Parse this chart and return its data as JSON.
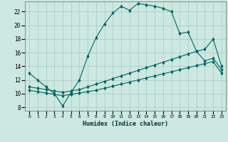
{
  "xlabel": "Humidex (Indice chaleur)",
  "bg_color": "#cce8e0",
  "grid_color": "#aad0c8",
  "line_color": "#006666",
  "xlim": [
    -0.5,
    23.5
  ],
  "ylim": [
    7.5,
    23.5
  ],
  "yticks": [
    8,
    10,
    12,
    14,
    16,
    18,
    20,
    22
  ],
  "xticks": [
    0,
    1,
    2,
    3,
    4,
    5,
    6,
    7,
    8,
    9,
    10,
    11,
    12,
    13,
    14,
    15,
    16,
    17,
    18,
    19,
    20,
    21,
    22,
    23
  ],
  "series1_x": [
    0,
    1,
    2,
    3,
    4,
    5,
    6,
    7,
    8,
    9,
    10,
    11,
    12,
    13,
    14,
    15,
    16,
    17,
    18,
    19,
    20,
    21,
    22,
    23
  ],
  "series1_y": [
    13.0,
    12.0,
    11.0,
    10.0,
    8.2,
    10.2,
    12.0,
    15.5,
    18.2,
    20.2,
    21.8,
    22.8,
    22.2,
    23.2,
    23.0,
    22.8,
    22.5,
    22.0,
    18.8,
    19.0,
    16.2,
    14.8,
    15.2,
    13.5
  ],
  "series2_x": [
    0,
    1,
    2,
    3,
    4,
    5,
    6,
    7,
    8,
    9,
    10,
    11,
    12,
    13,
    14,
    15,
    16,
    17,
    18,
    19,
    20,
    21,
    22,
    23
  ],
  "series2_y": [
    11.0,
    10.8,
    10.6,
    10.4,
    10.2,
    10.4,
    10.6,
    11.0,
    11.4,
    11.8,
    12.2,
    12.6,
    13.0,
    13.4,
    13.8,
    14.2,
    14.6,
    15.0,
    15.4,
    15.8,
    16.2,
    16.5,
    18.0,
    14.0
  ],
  "series3_x": [
    0,
    1,
    2,
    3,
    4,
    5,
    6,
    7,
    8,
    9,
    10,
    11,
    12,
    13,
    14,
    15,
    16,
    17,
    18,
    19,
    20,
    21,
    22,
    23
  ],
  "series3_y": [
    10.5,
    10.3,
    10.1,
    9.9,
    9.7,
    9.9,
    10.1,
    10.3,
    10.5,
    10.8,
    11.1,
    11.4,
    11.7,
    12.0,
    12.3,
    12.6,
    12.9,
    13.2,
    13.5,
    13.8,
    14.1,
    14.4,
    14.7,
    13.0
  ]
}
